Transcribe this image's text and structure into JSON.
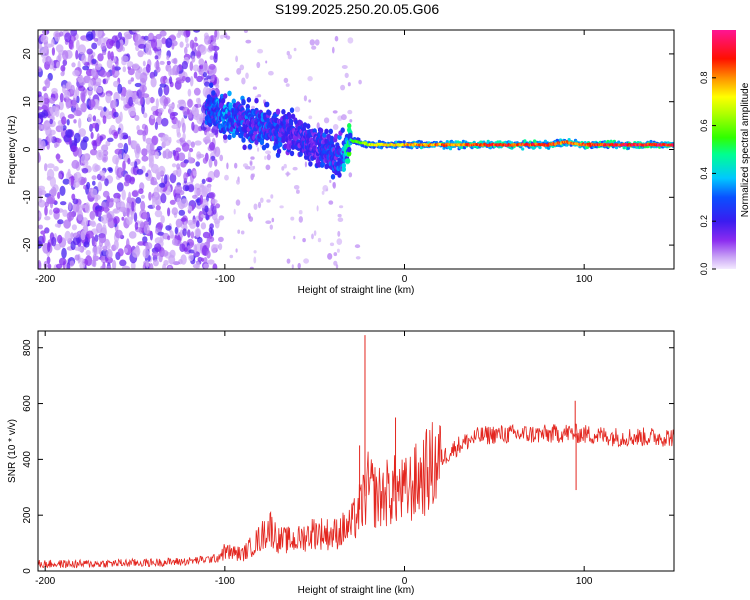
{
  "figure_title": "S199.2025.250.20.05.G06",
  "colors": {
    "snr_line": "#e3261f",
    "axis": "#000000",
    "background": "#ffffff",
    "colormap": [
      "#ffffff",
      "#c9a3f5",
      "#8b2cf0",
      "#5a14e8",
      "#1a2cff",
      "#00c8ff",
      "#00ff80",
      "#7fff00",
      "#ffff00",
      "#ff8c00",
      "#ff0000",
      "#ff1493"
    ]
  },
  "chart_data": [
    {
      "type": "heatmap",
      "title": "S199.2025.250.20.05.G06",
      "xlabel": "Height of straight line (km)",
      "ylabel": "Frequency (Hz)",
      "xlim": [
        -204,
        150
      ],
      "ylim": [
        -25,
        25
      ],
      "xticks": [
        -200,
        -100,
        0,
        100
      ],
      "yticks": [
        -20,
        -10,
        0,
        10,
        20
      ],
      "colorbar": {
        "label": "Normalized spectral amplitude",
        "range": [
          0,
          1
        ],
        "ticks": [
          0.0,
          0.2,
          0.4,
          0.6,
          0.8
        ]
      },
      "ridge": {
        "x": [
          -110,
          -100,
          -90,
          -80,
          -70,
          -60,
          -50,
          -40,
          -35,
          -30,
          -20,
          -10,
          0,
          20,
          50,
          80,
          90,
          100,
          120,
          150
        ],
        "freq": [
          8,
          7,
          6,
          5,
          4,
          3,
          1,
          -1,
          -2,
          2,
          1,
          1,
          1,
          1,
          1,
          1,
          1.5,
          1,
          1,
          1
        ],
        "amplitude": [
          0.3,
          0.35,
          0.3,
          0.3,
          0.28,
          0.25,
          0.25,
          0.3,
          0.3,
          0.55,
          0.7,
          0.75,
          0.8,
          0.85,
          0.9,
          0.9,
          0.85,
          0.9,
          0.95,
          0.95
        ]
      }
    },
    {
      "type": "line",
      "title": "",
      "xlabel": "Height of straight line (km)",
      "ylabel": "SNR (10 * v/v)",
      "xlim": [
        -204,
        150
      ],
      "ylim": [
        0,
        860
      ],
      "xticks": [
        -200,
        -100,
        0,
        100
      ],
      "yticks": [
        0,
        200,
        400,
        600,
        800
      ],
      "series": [
        {
          "name": "SNR",
          "x": [
            -204,
            -180,
            -160,
            -140,
            -120,
            -105,
            -100,
            -90,
            -80,
            -75,
            -70,
            -60,
            -50,
            -40,
            -30,
            -25,
            -20,
            -15,
            -10,
            -5,
            0,
            10,
            20,
            30,
            40,
            50,
            60,
            70,
            80,
            90,
            100,
            110,
            120,
            130,
            140,
            150
          ],
          "y": [
            25,
            25,
            28,
            30,
            35,
            45,
            70,
            60,
            120,
            160,
            110,
            110,
            140,
            130,
            160,
            220,
            300,
            260,
            280,
            290,
            280,
            340,
            400,
            450,
            480,
            490,
            490,
            490,
            490,
            495,
            490,
            485,
            480,
            480,
            480,
            480
          ]
        }
      ],
      "spikes": [
        {
          "x": -22,
          "y": 845
        },
        {
          "x": -25,
          "y": 450
        },
        {
          "x": -5,
          "y": 550
        },
        {
          "x": 95,
          "y": 610
        },
        {
          "x": 95.5,
          "y": 290
        }
      ]
    }
  ]
}
